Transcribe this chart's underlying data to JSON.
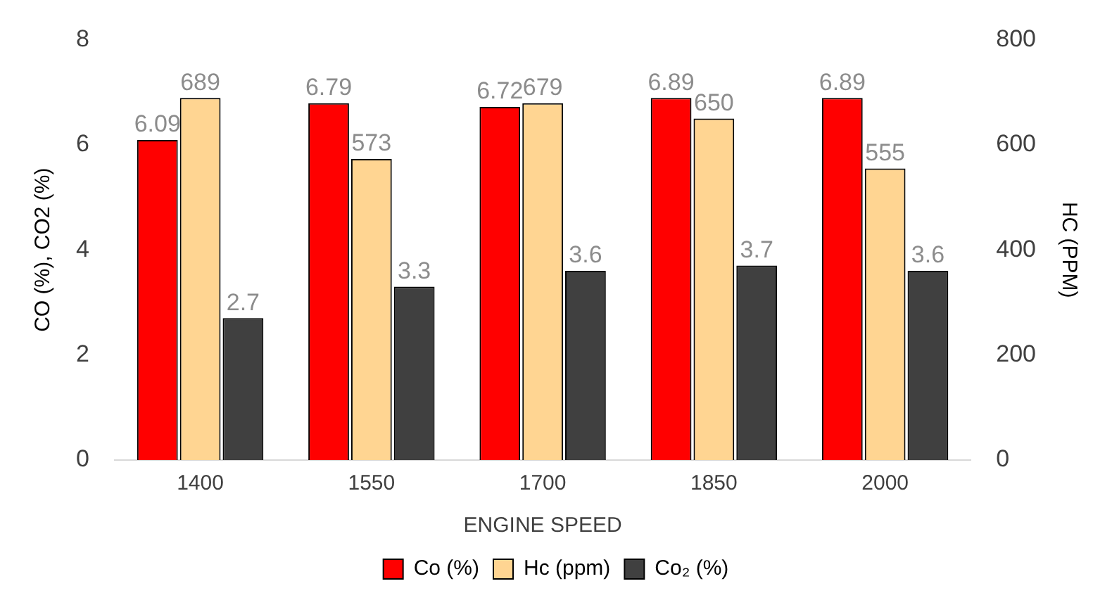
{
  "chart_data": {
    "type": "bar",
    "xlabel": "ENGINE SPEED",
    "ylabel": "CO (%), CO2 (%)",
    "y2label": "HC (PPM)",
    "categories": [
      "1400",
      "1550",
      "1700",
      "1850",
      "2000"
    ],
    "series": [
      {
        "name": "Co (%)",
        "color": "#ff0000",
        "values": [
          6.09,
          6.79,
          6.72,
          6.89,
          6.89
        ]
      },
      {
        "name": "Hc (ppm)",
        "color": "#ffd592",
        "values": [
          689,
          573,
          679,
          650,
          555
        ],
        "axis": "y2"
      },
      {
        "name": "Co₂ (%)",
        "color": "#404040",
        "values": [
          2.7,
          3.3,
          3.6,
          3.7,
          3.6
        ]
      }
    ],
    "ylim": [
      0,
      8
    ],
    "yticks": [
      0,
      2,
      4,
      6,
      8
    ],
    "y2lim": [
      0,
      800
    ],
    "y2ticks": [
      0,
      200,
      400,
      600,
      800
    ],
    "data_labels": true,
    "grid": false,
    "legend": "bottom"
  }
}
